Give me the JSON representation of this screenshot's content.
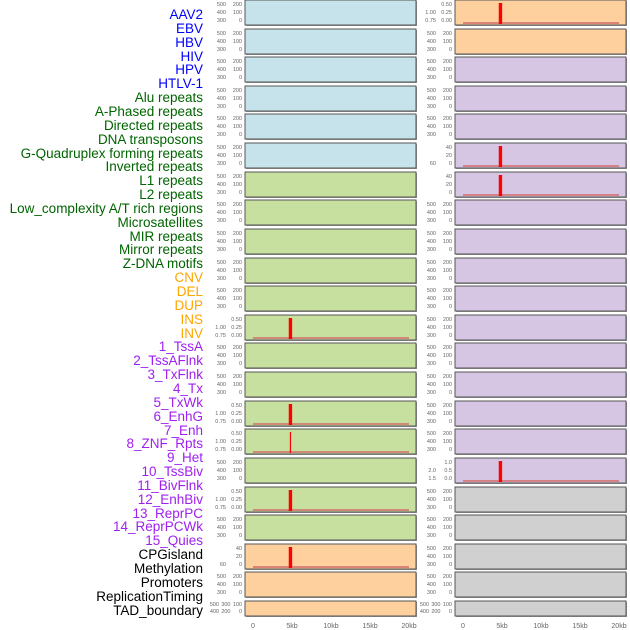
{
  "chart_data": {
    "type": "bar",
    "track_labels": [
      {
        "text": "AAV2",
        "color": "#0000ff"
      },
      {
        "text": "EBV",
        "color": "#0000ff"
      },
      {
        "text": "HBV",
        "color": "#0000ff"
      },
      {
        "text": "HIV",
        "color": "#0000ff"
      },
      {
        "text": "HPV",
        "color": "#0000ff"
      },
      {
        "text": "HTLV-1",
        "color": "#0000ff"
      },
      {
        "text": "Alu repeats",
        "color": "#006400"
      },
      {
        "text": "A-Phased repeats",
        "color": "#006400"
      },
      {
        "text": "Directed repeats",
        "color": "#006400"
      },
      {
        "text": "DNA transposons",
        "color": "#006400"
      },
      {
        "text": "G-Quadruplex forming repeats",
        "color": "#006400"
      },
      {
        "text": "Inverted repeats",
        "color": "#006400"
      },
      {
        "text": "L1 repeats",
        "color": "#006400"
      },
      {
        "text": "L2 repeats",
        "color": "#006400"
      },
      {
        "text": "Low_complexity A/T rich regions",
        "color": "#006400"
      },
      {
        "text": "Microsatellites",
        "color": "#006400"
      },
      {
        "text": "MIR repeats",
        "color": "#006400"
      },
      {
        "text": "Mirror repeats",
        "color": "#006400"
      },
      {
        "text": "Z-DNA motifs",
        "color": "#006400"
      },
      {
        "text": "CNV",
        "color": "#ffa500"
      },
      {
        "text": "DEL",
        "color": "#ffa500"
      },
      {
        "text": "DUP",
        "color": "#ffa500"
      },
      {
        "text": "INS",
        "color": "#ffa500"
      },
      {
        "text": "INV",
        "color": "#ffa500"
      },
      {
        "text": "1_TssA",
        "color": "#a020f0"
      },
      {
        "text": "2_TssAFlnk",
        "color": "#a020f0"
      },
      {
        "text": "3_TxFlnk",
        "color": "#a020f0"
      },
      {
        "text": "4_Tx",
        "color": "#a020f0"
      },
      {
        "text": "5_TxWk",
        "color": "#a020f0"
      },
      {
        "text": "6_EnhG",
        "color": "#a020f0"
      },
      {
        "text": "7_Enh",
        "color": "#a020f0"
      },
      {
        "text": "8_ZNF_Rpts",
        "color": "#a020f0"
      },
      {
        "text": "9_Het",
        "color": "#a020f0"
      },
      {
        "text": "10_TssBiv",
        "color": "#a020f0"
      },
      {
        "text": "11_BivFlnk",
        "color": "#a020f0"
      },
      {
        "text": "12_EnhBiv",
        "color": "#a020f0"
      },
      {
        "text": "13_ReprPC",
        "color": "#a020f0"
      },
      {
        "text": "14_ReprPCWk",
        "color": "#a020f0"
      },
      {
        "text": "15_Quies",
        "color": "#a020f0"
      },
      {
        "text": "CPGisland",
        "color": "#000000"
      },
      {
        "text": "Methylation",
        "color": "#000000"
      },
      {
        "text": "Promoters",
        "color": "#000000"
      },
      {
        "text": "ReplicationTiming",
        "color": "#000000"
      },
      {
        "text": "TAD_boundary",
        "color": "#000000"
      }
    ],
    "x_ticks": [
      "0",
      "5kb",
      "10kb",
      "15kb",
      "20kb"
    ],
    "xlim": [
      0,
      20
    ],
    "default_yticks": [
      "0",
      "100",
      "200",
      "300",
      "400",
      "500"
    ],
    "colors": {
      "blue": "#c6e3ec",
      "green": "#c7e0a0",
      "orange": "#fdd09e",
      "purple": "#d6c6e3",
      "gray": "#d0d0d0",
      "spike": "#ff0000"
    },
    "columns": [
      [
        {
          "fill": "blue"
        },
        {
          "fill": "blue"
        },
        {
          "fill": "blue"
        },
        {
          "fill": "blue"
        },
        {
          "fill": "blue"
        },
        {
          "fill": "blue"
        },
        {
          "fill": "green"
        },
        {
          "fill": "green"
        },
        {
          "fill": "green"
        },
        {
          "fill": "green"
        },
        {
          "fill": "green"
        },
        {
          "fill": "green",
          "yticks": [
            "0.00",
            "0.25",
            "0.50",
            "0.75",
            "1.00"
          ],
          "ymax": 1,
          "spike_x": 4.8,
          "spike_y": 1
        },
        {
          "fill": "green"
        },
        {
          "fill": "green"
        },
        {
          "fill": "green",
          "yticks": [
            "0.00",
            "0.25",
            "0.50",
            "0.75",
            "1.00"
          ],
          "ymax": 1,
          "spike_x": 4.8,
          "spike_y": 1
        },
        {
          "fill": "green",
          "yticks": [
            "0.00",
            "0.25",
            "0.50",
            "0.75",
            "1.00"
          ],
          "ymax": 1,
          "spike_x": 4.8,
          "spike_y": 1,
          "thin": true
        },
        {
          "fill": "green"
        },
        {
          "fill": "green",
          "yticks": [
            "0.00",
            "0.25",
            "0.50",
            "0.75",
            "1.00"
          ],
          "ymax": 1,
          "spike_x": 4.8,
          "spike_y": 1
        },
        {
          "fill": "green"
        },
        {
          "fill": "orange",
          "yticks": [
            "0",
            "20",
            "40",
            "60"
          ],
          "ymax": 72,
          "spike_x": 4.8,
          "spike_y": 72
        },
        {
          "fill": "orange"
        },
        {
          "fill": "orange"
        }
      ],
      [
        {
          "fill": "orange",
          "yticks": [
            "0.00",
            "0.25",
            "0.50",
            "0.75",
            "1.00"
          ],
          "ymax": 1,
          "spike_x": 4.8,
          "spike_y": 1
        },
        {
          "fill": "orange"
        },
        {
          "fill": "purple"
        },
        {
          "fill": "purple"
        },
        {
          "fill": "purple"
        },
        {
          "fill": "purple",
          "yticks": [
            "0",
            "20",
            "40",
            "60"
          ],
          "ymax": 70,
          "spike_x": 4.8,
          "spike_y": 70
        },
        {
          "fill": "purple",
          "yticks": [
            "0",
            "20",
            "40"
          ],
          "ymax": 55,
          "spike_x": 4.8,
          "spike_y": 55
        },
        {
          "fill": "purple"
        },
        {
          "fill": "purple"
        },
        {
          "fill": "purple"
        },
        {
          "fill": "purple"
        },
        {
          "fill": "purple"
        },
        {
          "fill": "purple"
        },
        {
          "fill": "purple"
        },
        {
          "fill": "purple"
        },
        {
          "fill": "purple"
        },
        {
          "fill": "purple",
          "yticks": [
            "0.0",
            "0.5",
            "1.0",
            "1.5",
            "2.0"
          ],
          "ymax": 2.1,
          "spike_x": 4.8,
          "spike_y": 2.1
        },
        {
          "fill": "gray"
        },
        {
          "fill": "gray"
        },
        {
          "fill": "gray"
        },
        {
          "fill": "gray"
        },
        {
          "fill": "gray"
        }
      ]
    ]
  }
}
